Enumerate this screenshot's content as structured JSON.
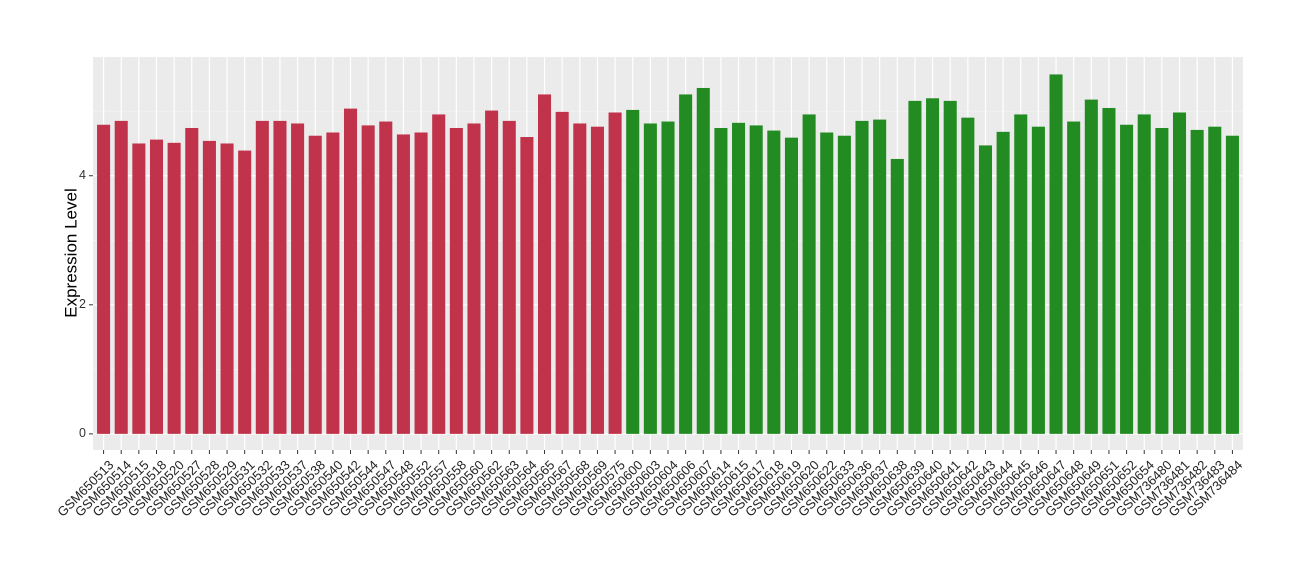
{
  "chart_data": {
    "type": "bar",
    "y_label": "Expression Level",
    "categories": [
      "GSM650513",
      "GSM650514",
      "GSM650515",
      "GSM650518",
      "GSM650520",
      "GSM650527",
      "GSM650528",
      "GSM650529",
      "GSM650531",
      "GSM650532",
      "GSM650533",
      "GSM650537",
      "GSM650538",
      "GSM650540",
      "GSM650542",
      "GSM650544",
      "GSM650547",
      "GSM650548",
      "GSM650552",
      "GSM650557",
      "GSM650558",
      "GSM650560",
      "GSM650562",
      "GSM650563",
      "GSM650564",
      "GSM650565",
      "GSM650567",
      "GSM650568",
      "GSM650569",
      "GSM650575",
      "GSM650600",
      "GSM650603",
      "GSM650604",
      "GSM650606",
      "GSM650607",
      "GSM650614",
      "GSM650615",
      "GSM650617",
      "GSM650618",
      "GSM650619",
      "GSM650620",
      "GSM650622",
      "GSM650633",
      "GSM650636",
      "GSM650637",
      "GSM650638",
      "GSM650639",
      "GSM650640",
      "GSM650641",
      "GSM650642",
      "GSM650643",
      "GSM650644",
      "GSM650645",
      "GSM650646",
      "GSM650647",
      "GSM650648",
      "GSM650649",
      "GSM650651",
      "GSM650652",
      "GSM650654",
      "GSM736480",
      "GSM736481",
      "GSM736482",
      "GSM736483",
      "GSM736484"
    ],
    "values": [
      4.79,
      4.85,
      4.5,
      4.56,
      4.51,
      4.74,
      4.54,
      4.5,
      4.39,
      4.85,
      4.85,
      4.81,
      4.62,
      4.67,
      5.04,
      4.78,
      4.84,
      4.64,
      4.67,
      4.95,
      4.74,
      4.81,
      5.01,
      4.85,
      4.6,
      5.26,
      4.99,
      4.81,
      4.76,
      4.98,
      5.02,
      4.81,
      4.84,
      5.26,
      5.36,
      4.74,
      4.82,
      4.78,
      4.7,
      4.59,
      4.95,
      4.67,
      4.62,
      4.85,
      4.87,
      4.26,
      5.16,
      5.2,
      5.16,
      4.9,
      4.47,
      4.68,
      4.95,
      4.76,
      5.57,
      4.84,
      5.18,
      5.05,
      4.79,
      4.95,
      4.74,
      4.98,
      4.71,
      4.76,
      4.62
    ],
    "colors": [
      "#c0334a",
      "#c0334a",
      "#c0334a",
      "#c0334a",
      "#c0334a",
      "#c0334a",
      "#c0334a",
      "#c0334a",
      "#c0334a",
      "#c0334a",
      "#c0334a",
      "#c0334a",
      "#c0334a",
      "#c0334a",
      "#c0334a",
      "#c0334a",
      "#c0334a",
      "#c0334a",
      "#c0334a",
      "#c0334a",
      "#c0334a",
      "#c0334a",
      "#c0334a",
      "#c0334a",
      "#c0334a",
      "#c0334a",
      "#c0334a",
      "#c0334a",
      "#c0334a",
      "#c0334a",
      "#228b22",
      "#228b22",
      "#228b22",
      "#228b22",
      "#228b22",
      "#228b22",
      "#228b22",
      "#228b22",
      "#228b22",
      "#228b22",
      "#228b22",
      "#228b22",
      "#228b22",
      "#228b22",
      "#228b22",
      "#228b22",
      "#228b22",
      "#228b22",
      "#228b22",
      "#228b22",
      "#228b22",
      "#228b22",
      "#228b22",
      "#228b22",
      "#228b22",
      "#228b22",
      "#228b22",
      "#228b22",
      "#228b22",
      "#228b22",
      "#228b22",
      "#228b22",
      "#228b22",
      "#228b22",
      "#228b22"
    ],
    "ylim": [
      -0.25,
      5.84
    ],
    "yticks": [
      0,
      2,
      4
    ],
    "minor_yticks": [
      1,
      3,
      5
    ],
    "grid": true
  }
}
